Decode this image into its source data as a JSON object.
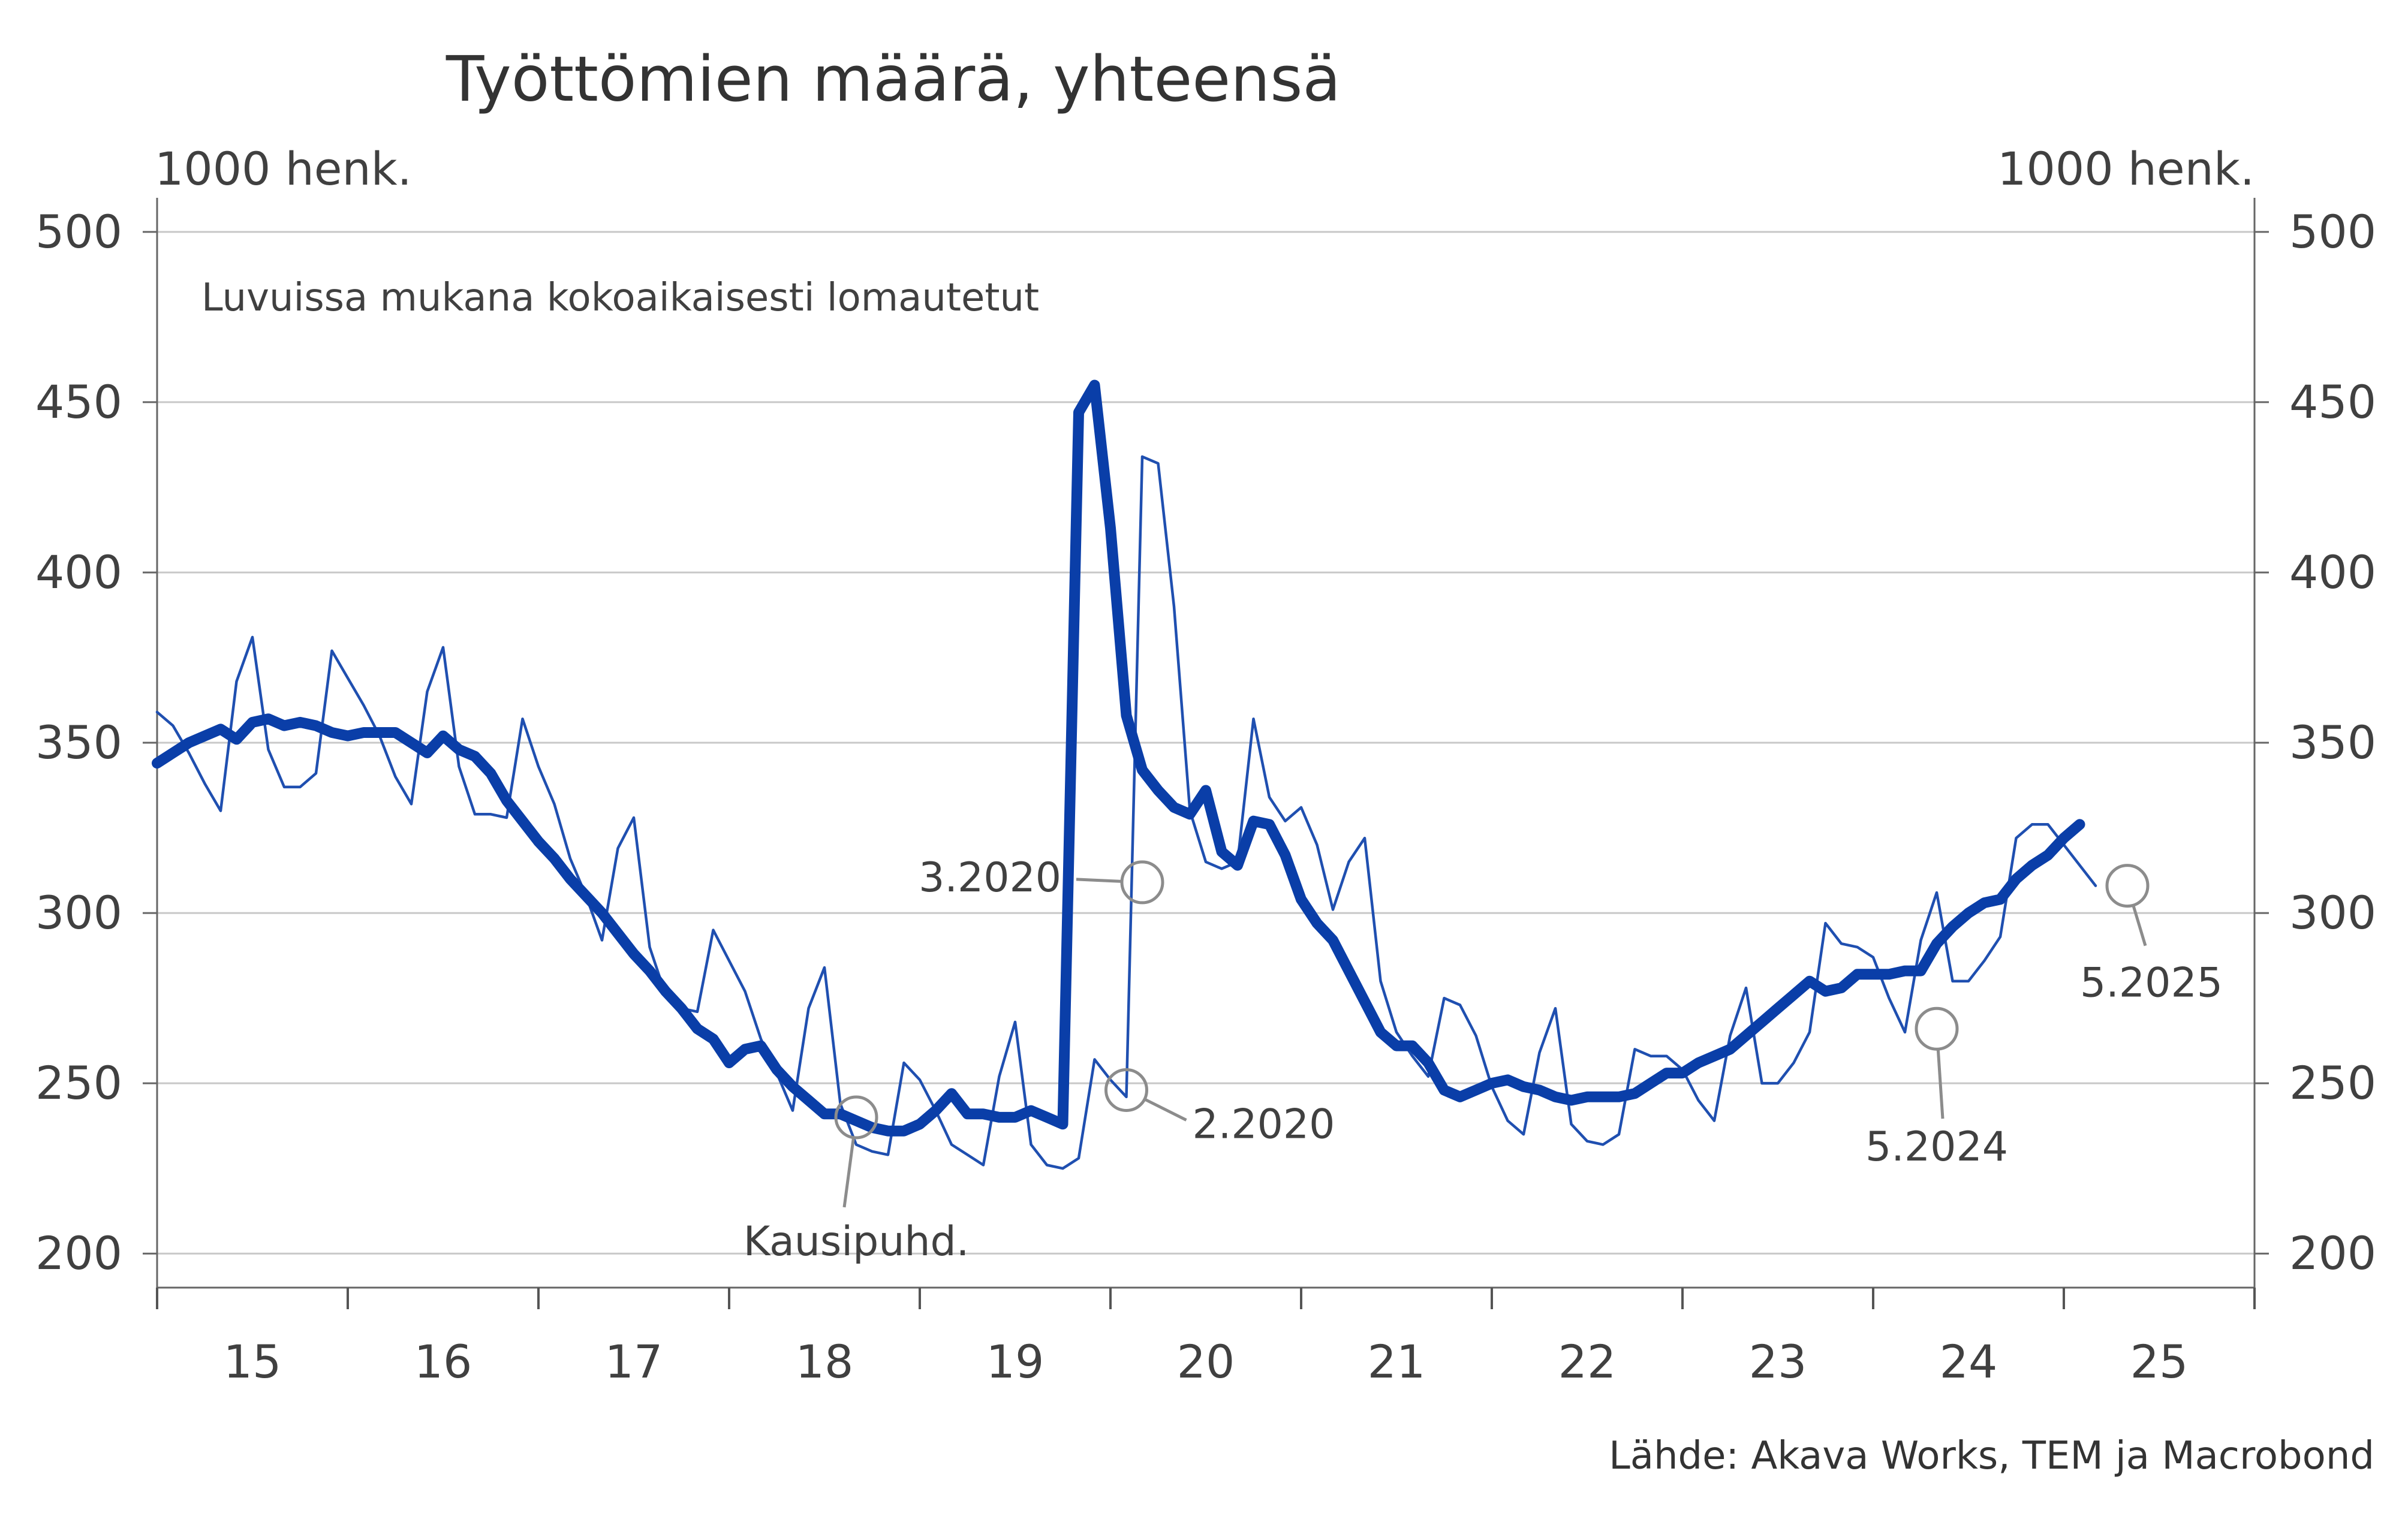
{
  "chart_data": {
    "type": "line",
    "title": "Työttömien määrä, yhteensä",
    "ylabel_left": "1000 henk.",
    "ylabel_right": "1000 henk.",
    "note": "Luvuissa mukana kokoaikaisesti lomautetut",
    "source": "Lähde: Akava Works, TEM ja Macrobond",
    "ylim": [
      190,
      510
    ],
    "yticks": [
      200,
      250,
      300,
      350,
      400,
      450,
      500
    ],
    "xlim": [
      2015.0,
      2026.0
    ],
    "xticks": [
      "15",
      "16",
      "17",
      "18",
      "19",
      "20",
      "21",
      "22",
      "23",
      "24",
      "25"
    ],
    "grid": "horizontal",
    "colors": {
      "thin": "#1f4fb0",
      "thick": "#0a3ea8",
      "grid": "#c8c8c8",
      "marker": "#8c8c8c"
    },
    "series": [
      {
        "name": "",
        "style": "thin",
        "x_start": "2015-01",
        "frequency": "monthly",
        "values": [
          359,
          355,
          347,
          338,
          330,
          368,
          381,
          348,
          337,
          337,
          341,
          377,
          369,
          361,
          352,
          340,
          332,
          365,
          378,
          343,
          329,
          329,
          328,
          357,
          343,
          332,
          316,
          305,
          292,
          319,
          328,
          290,
          276,
          272,
          271,
          295,
          286,
          277,
          263,
          253,
          242,
          272,
          284,
          244,
          232,
          230,
          229,
          256,
          251,
          242,
          232,
          229,
          226,
          252,
          268,
          232,
          226,
          225,
          228,
          257,
          251,
          246,
          434,
          432,
          390,
          330,
          315,
          313,
          315,
          357,
          334,
          327,
          331,
          320,
          301,
          315,
          322,
          280,
          265,
          258,
          252,
          275,
          273,
          264,
          249,
          239,
          235,
          259,
          272,
          238,
          233,
          232,
          235,
          260,
          258,
          258,
          254,
          245,
          239,
          264,
          278,
          250,
          250,
          256,
          265,
          297,
          291,
          290,
          287,
          275,
          265,
          292,
          306,
          280,
          280,
          286,
          293,
          322,
          326,
          326,
          320,
          314,
          308
        ]
      },
      {
        "name": "Kausipuhd.",
        "style": "thick",
        "x_start": "2015-01",
        "frequency": "monthly",
        "values": [
          344,
          347,
          350,
          352,
          354,
          351,
          356,
          357,
          355,
          356,
          355,
          353,
          352,
          353,
          353,
          353,
          350,
          347,
          352,
          348,
          346,
          341,
          333,
          327,
          321,
          316,
          310,
          305,
          300,
          294,
          288,
          283,
          277,
          272,
          266,
          263,
          256,
          260,
          261,
          254,
          249,
          245,
          241,
          241,
          239,
          237,
          236,
          236,
          238,
          242,
          247,
          241,
          241,
          240,
          240,
          242,
          240,
          238,
          447,
          455,
          413,
          358,
          342,
          336,
          331,
          329,
          336,
          318,
          314,
          327,
          326,
          317,
          304,
          297,
          292,
          283,
          274,
          265,
          261,
          261,
          256,
          248,
          246,
          248,
          250,
          251,
          249,
          248,
          246,
          245,
          246,
          246,
          246,
          247,
          250,
          253,
          253,
          256,
          258,
          260,
          264,
          268,
          272,
          276,
          280,
          277,
          278,
          282,
          282,
          282,
          283,
          283,
          291,
          296,
          300,
          303,
          304,
          310,
          314,
          317,
          322,
          326
        ]
      }
    ],
    "annotations": [
      {
        "label": "Kausipuhd.",
        "x": "2018-09",
        "y": 240
      },
      {
        "label": "3.2020",
        "x": "2020-03",
        "y": 309
      },
      {
        "label": "2.2020",
        "x": "2020-02",
        "y": 248
      },
      {
        "label": "5.2024",
        "x": "2024-05",
        "y": 266
      },
      {
        "label": "5.2025",
        "x": "2025-05",
        "y": 308
      }
    ]
  }
}
